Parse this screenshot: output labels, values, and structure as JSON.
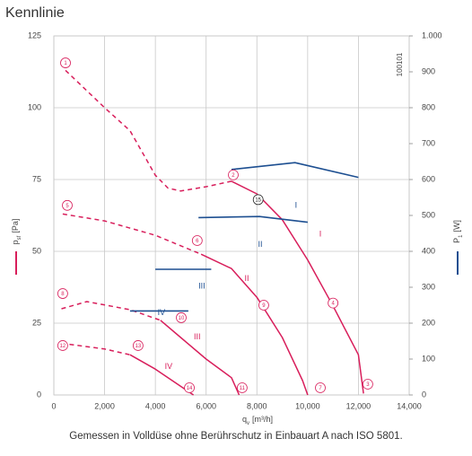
{
  "chart_data": {
    "type": "line",
    "title": "Kennlinie",
    "code": "100101",
    "caption": "Gemessen in Volldüse ohne Berührschutz in Einbauart A nach ISO 5801.",
    "ylabel": {
      "symbol": "p",
      "sub": "sf",
      "unit": "[Pa]"
    },
    "y2label": {
      "symbol": "P",
      "sub": "1",
      "unit": "[W]"
    },
    "xlabel": {
      "symbol": "q",
      "sub": "v",
      "unit": "[m³/h]"
    },
    "xlim": [
      0,
      14000
    ],
    "xticks": [
      0,
      {
        "value": 2000,
        "label": "2,000"
      },
      {
        "value": 4000,
        "label": "4,000"
      },
      {
        "value": 6000,
        "label": "6,000"
      },
      {
        "value": 8000,
        "label": "8,000"
      },
      {
        "value": 10000,
        "label": "10,000"
      },
      {
        "value": 12000,
        "label": "12,000"
      },
      {
        "value": 14000,
        "label": "14,000"
      }
    ],
    "ylim": [
      0,
      125
    ],
    "yticks": [
      0,
      25,
      50,
      75,
      100,
      125
    ],
    "y2lim": [
      0,
      1000
    ],
    "y2ticks": [
      0,
      100,
      200,
      300,
      400,
      500,
      600,
      700,
      800,
      900,
      {
        "value": 1000,
        "label": "1.000"
      }
    ],
    "grid": true,
    "pressure_color": "#d81e5b",
    "power_color": "#1d4f91",
    "series": [
      {
        "style": "dashed",
        "color": "#d81e5b",
        "x": [
          460,
          2000,
          3000,
          4000,
          4500,
          5000,
          6000,
          7000
        ],
        "values": [
          113,
          100,
          92,
          76.5,
          72,
          71,
          72.5,
          74.4
        ]
      },
      {
        "style": "solid",
        "color": "#d81e5b",
        "x": [
          7000,
          8000,
          9000,
          10000,
          11000,
          12000,
          12200
        ],
        "values": [
          74.4,
          70,
          61,
          47,
          31,
          14,
          0.5
        ]
      },
      {
        "style": "dashed",
        "color": "#d81e5b",
        "x": [
          350,
          2000,
          4000,
          5800
        ],
        "values": [
          63,
          60.6,
          55.6,
          49
        ]
      },
      {
        "style": "solid",
        "color": "#d81e5b",
        "x": [
          5800,
          7000,
          8000,
          9000,
          9800,
          10000
        ],
        "values": [
          49,
          44,
          34,
          20,
          5,
          0
        ]
      },
      {
        "style": "dashed",
        "color": "#d81e5b",
        "x": [
          300,
          1300,
          3000,
          4200
        ],
        "values": [
          30,
          32.5,
          29.7,
          26
        ]
      },
      {
        "style": "solid",
        "color": "#d81e5b",
        "x": [
          4200,
          5000,
          6000,
          7000,
          7300
        ],
        "values": [
          26,
          20,
          12.5,
          6,
          0
        ]
      },
      {
        "style": "dashed",
        "color": "#d81e5b",
        "x": [
          300,
          2000,
          3000
        ],
        "values": [
          18,
          16,
          14
        ]
      },
      {
        "style": "solid",
        "color": "#d81e5b",
        "x": [
          3000,
          4000,
          5000,
          5500
        ],
        "values": [
          14,
          9,
          3,
          0
        ]
      },
      {
        "style": "solid",
        "color": "#1d4f91",
        "axis": "y2",
        "x": [
          7000,
          9500,
          12000
        ],
        "values": [
          628,
          647,
          606
        ]
      },
      {
        "style": "solid",
        "color": "#1d4f91",
        "axis": "y2",
        "x": [
          5700,
          8100,
          10000
        ],
        "values": [
          494,
          497,
          481
        ]
      },
      {
        "style": "solid",
        "color": "#1d4f91",
        "axis": "y2",
        "x": [
          4000,
          6200
        ],
        "values": [
          350,
          350
        ]
      },
      {
        "style": "solid",
        "color": "#1d4f91",
        "axis": "y2",
        "x": [
          3000,
          5300
        ],
        "values": [
          234,
          234
        ]
      }
    ],
    "annotations": [
      {
        "text": "1",
        "x": 460,
        "y": 115.6,
        "circle": true,
        "color": "#d81e5b"
      },
      {
        "text": "2",
        "x": 7070,
        "y": 76.6,
        "circle": true,
        "color": "#d81e5b"
      },
      {
        "text": "3",
        "x": 12370,
        "y": 3.75,
        "circle": true,
        "color": "#d81e5b"
      },
      {
        "text": "4",
        "x": 11000,
        "y": 32,
        "circle": true,
        "color": "#d81e5b"
      },
      {
        "text": "5",
        "x": 530,
        "y": 66,
        "circle": true,
        "color": "#d81e5b"
      },
      {
        "text": "6",
        "x": 5650,
        "y": 53.75,
        "circle": true,
        "color": "#d81e5b"
      },
      {
        "text": "7",
        "x": 10500,
        "y": 2.5,
        "circle": true,
        "color": "#d81e5b"
      },
      {
        "text": "8",
        "x": 350,
        "y": 35.3,
        "circle": true,
        "color": "#d81e5b"
      },
      {
        "text": "9",
        "x": 8270,
        "y": 31.25,
        "circle": true,
        "color": "#d81e5b"
      },
      {
        "text": "10",
        "x": 5020,
        "y": 26.9,
        "circle": true,
        "color": "#d81e5b"
      },
      {
        "text": "11",
        "x": 7420,
        "y": 2.5,
        "circle": true,
        "color": "#d81e5b"
      },
      {
        "text": "12",
        "x": 350,
        "y": 17.2,
        "circle": true,
        "color": "#d81e5b"
      },
      {
        "text": "13",
        "x": 3320,
        "y": 17.2,
        "circle": true,
        "color": "#d81e5b"
      },
      {
        "text": "14",
        "x": 5340,
        "y": 2.5,
        "circle": true,
        "color": "#d81e5b"
      },
      {
        "text": "15",
        "x": 8050,
        "y": 68,
        "circle": true,
        "color": "#222222"
      },
      {
        "text": "I",
        "x": 9540,
        "y": 66,
        "circle": false,
        "color": "#1d4f91"
      },
      {
        "text": "I",
        "x": 10500,
        "y": 56,
        "circle": false,
        "color": "#d81e5b"
      },
      {
        "text": "II",
        "x": 8130,
        "y": 52.5,
        "circle": false,
        "color": "#1d4f91"
      },
      {
        "text": "II",
        "x": 7600,
        "y": 40.6,
        "circle": false,
        "color": "#d81e5b"
      },
      {
        "text": "III",
        "x": 5830,
        "y": 38,
        "circle": false,
        "color": "#1d4f91"
      },
      {
        "text": "III",
        "x": 5650,
        "y": 20.3,
        "circle": false,
        "color": "#d81e5b"
      },
      {
        "text": "IV",
        "x": 4240,
        "y": 28.75,
        "circle": false,
        "color": "#1d4f91"
      },
      {
        "text": "IV",
        "x": 4520,
        "y": 10,
        "circle": false,
        "color": "#d81e5b"
      }
    ]
  }
}
